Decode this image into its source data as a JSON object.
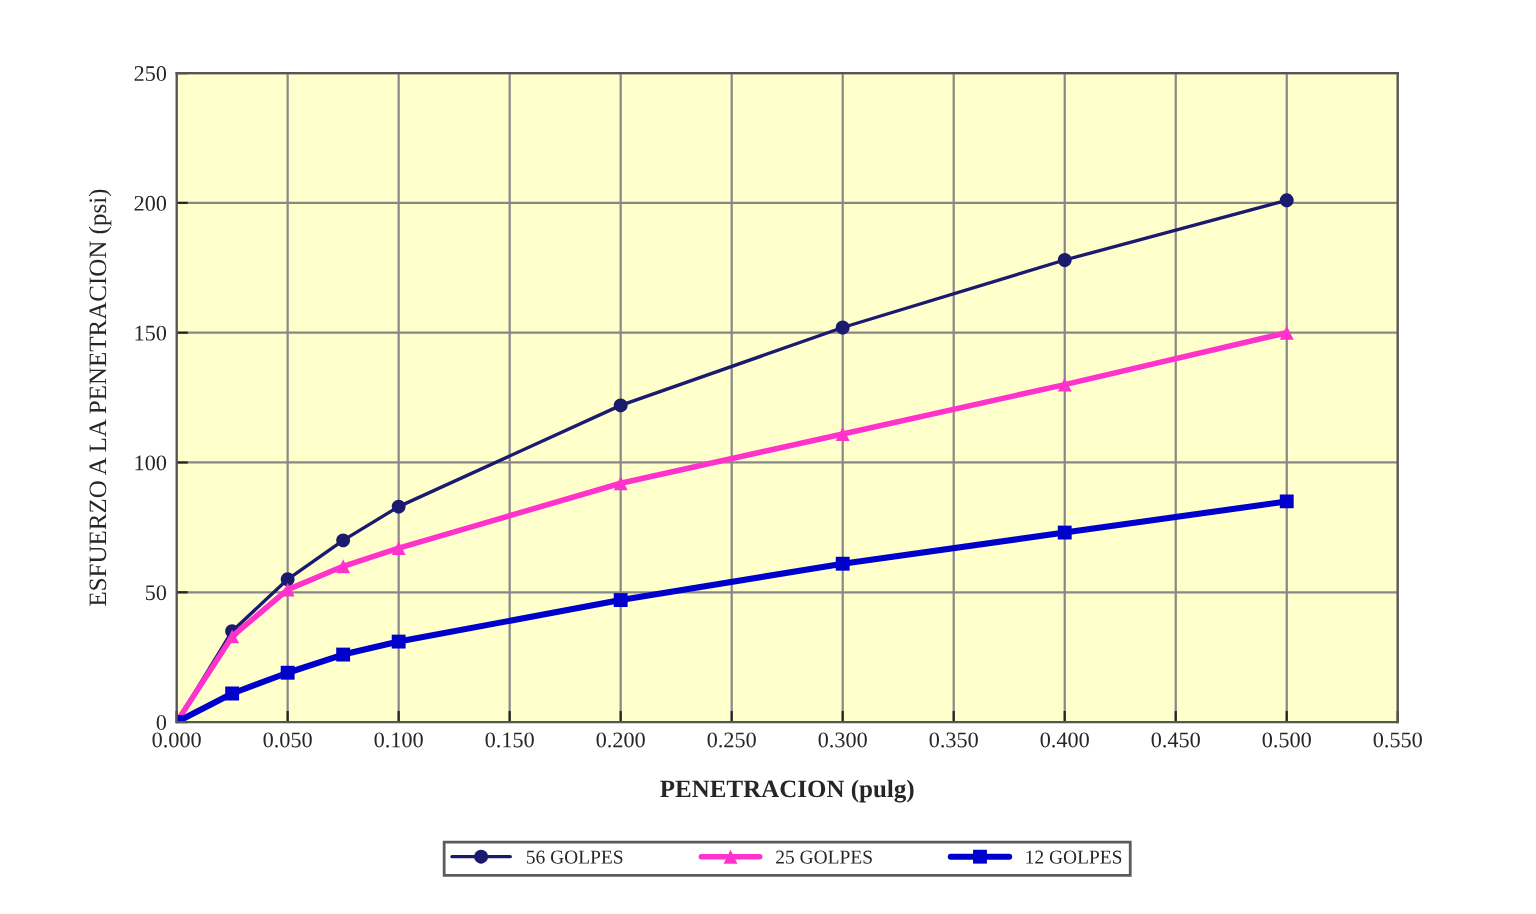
{
  "chart_data": {
    "type": "line",
    "xlabel": "PENETRACION (pulg)",
    "ylabel": "ESFUERZO A LA PENETRACION (psi)",
    "x": [
      0,
      0.025,
      0.05,
      0.075,
      0.1,
      0.2,
      0.3,
      0.4,
      0.5
    ],
    "series": [
      {
        "name": "56 GOLPES",
        "color": "#1a1a6e",
        "marker": "circle",
        "values": [
          0,
          35,
          55,
          70,
          83,
          122,
          152,
          178,
          201
        ]
      },
      {
        "name": "25 GOLPES",
        "color": "#ff33cc",
        "marker": "triangle",
        "values": [
          0,
          33,
          51,
          60,
          67,
          92,
          111,
          130,
          150
        ]
      },
      {
        "name": "12 GOLPES",
        "color": "#0000cc",
        "marker": "square",
        "values": [
          0,
          11,
          19,
          26,
          31,
          47,
          61,
          73,
          85
        ]
      }
    ],
    "xlim": [
      0,
      0.55
    ],
    "xticks": [
      {
        "value": 0,
        "label": "0.000"
      },
      {
        "value": 0.05,
        "label": "0.050"
      },
      {
        "value": 0.1,
        "label": "0.100"
      },
      {
        "value": 0.15,
        "label": "0.150"
      },
      {
        "value": 0.2,
        "label": "0.200"
      },
      {
        "value": 0.25,
        "label": "0.250"
      },
      {
        "value": 0.3,
        "label": "0.300"
      },
      {
        "value": 0.35,
        "label": "0.350"
      },
      {
        "value": 0.4,
        "label": "0.400"
      },
      {
        "value": 0.45,
        "label": "0.450"
      },
      {
        "value": 0.5,
        "label": "0.500"
      },
      {
        "value": 0.55,
        "label": "0.550"
      }
    ],
    "ylim": [
      0,
      250
    ],
    "yticks": [
      0,
      50,
      100,
      150,
      200,
      250
    ],
    "grid": true,
    "legend": "bottom"
  }
}
